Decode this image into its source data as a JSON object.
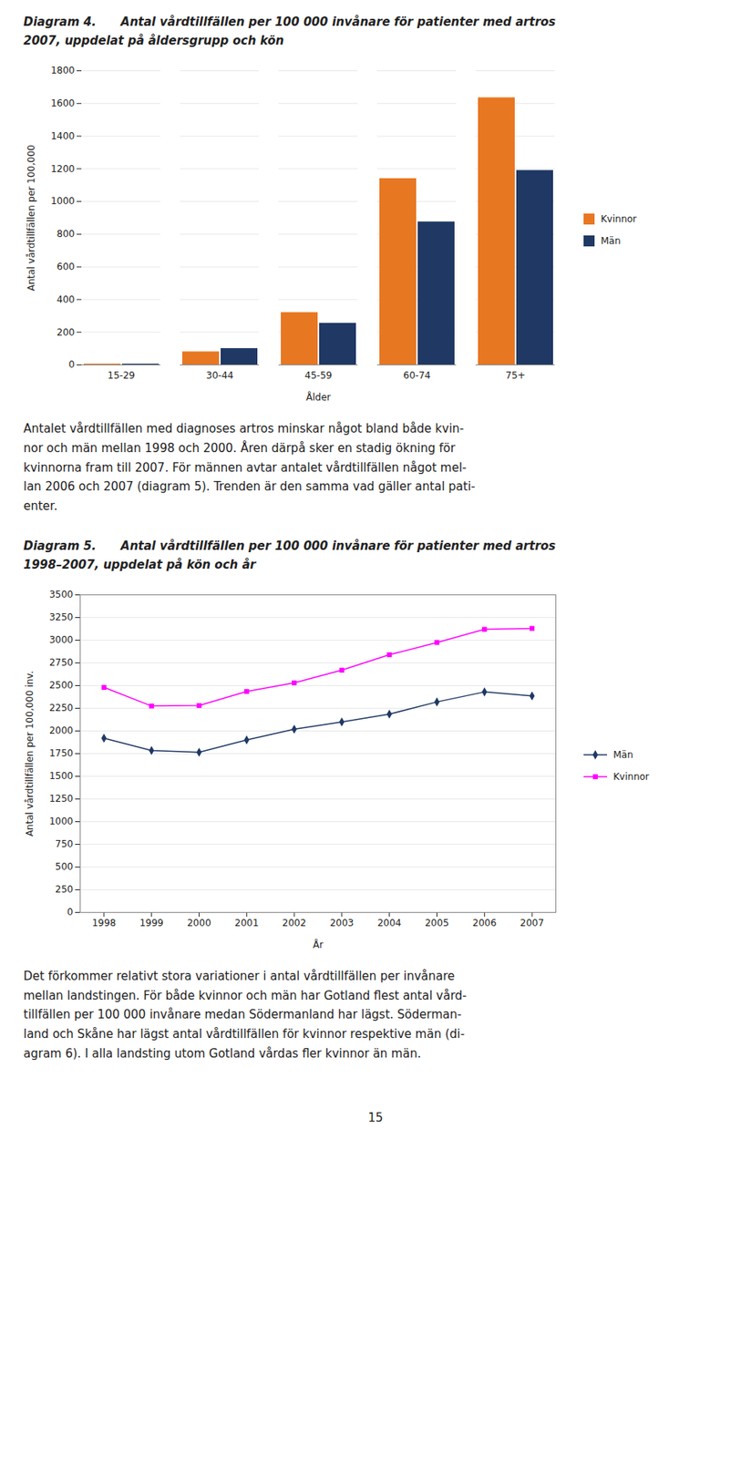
{
  "chart_data": [
    {
      "type": "bar",
      "title": "Diagram 4.      Antal vårdtillfällen per 100 000 invånare för patienter med artros\n2007, uppdelat på åldersgrupp och kön",
      "categories": [
        "15-29",
        "30-44",
        "45-59",
        "60-74",
        "75+"
      ],
      "series": [
        {
          "name": "Kvinnor",
          "color": "#E87722",
          "values": [
            5,
            80,
            320,
            1140,
            1635
          ]
        },
        {
          "name": "Män",
          "color": "#1F3864",
          "values": [
            5,
            100,
            255,
            875,
            1190
          ]
        }
      ],
      "xlabel": "Ålder",
      "ylabel": "Antal vårdtillfällen per 100,000",
      "ylim": [
        0,
        1800
      ],
      "yticks": [
        0,
        200,
        400,
        600,
        800,
        1000,
        1200,
        1400,
        1600,
        1800
      ],
      "grid": true,
      "legend": "right",
      "annotations": [
        "Antalet vårdtillfällen med diagnoses artros minskar något bland både kvin-\nnor och män mellan 1998 och 2000. Åren därpå sker en stadig ökning för\nkvinnorna fram till 2007. För männen avtar antalet vårdtillfällen något mel-\nlan 2006 och 2007 (diagram 5). Trenden är den samma vad gäller antal pati-\nenter."
      ]
    },
    {
      "type": "line",
      "title": "Diagram 5.      Antal vårdtillfällen per 100 000 invånare för patienter med artros\n1998–2007, uppdelat på kön och år",
      "x": [
        1998,
        1999,
        2000,
        2001,
        2002,
        2003,
        2004,
        2005,
        2006,
        2007
      ],
      "series": [
        {
          "name": "Män",
          "color": "#1F3864",
          "marker": "diamond",
          "values": [
            1920,
            1785,
            1765,
            1900,
            2020,
            2100,
            2185,
            2320,
            2430,
            2385
          ]
        },
        {
          "name": "Kvinnor",
          "color": "#FF00FF",
          "marker": "square",
          "values": [
            2480,
            2275,
            2280,
            2435,
            2530,
            2670,
            2840,
            2975,
            3120,
            3130
          ]
        }
      ],
      "xlabel": "År",
      "ylabel": "Antal vårdtillfällen per 100,000 inv.",
      "xlim": [
        1997.5,
        2007.5
      ],
      "xticks": [
        1998,
        1999,
        2000,
        2001,
        2002,
        2003,
        2004,
        2005,
        2006,
        2007
      ],
      "ylim": [
        0,
        3500
      ],
      "yticks": [
        0,
        250,
        500,
        750,
        1000,
        1250,
        1500,
        1750,
        2000,
        2250,
        2500,
        2750,
        3000,
        3250,
        3500
      ],
      "grid": true,
      "legend": "right",
      "annotations": [
        "Det förkommer relativt stora variationer i antal vårdtillfällen per invånare\nmellan landstingen. För både kvinnor och män har Gotland flest antal vård-\ntillfällen per 100 000 invånare medan Södermanland har lägst. Söderman-\nland och Skåne har lägst antal vårdtillfällen för kvinnor respektive män (di-\nagram 6). I alla landsting utom Gotland vårdas fler kvinnor än män."
      ]
    }
  ],
  "page_number": "15"
}
